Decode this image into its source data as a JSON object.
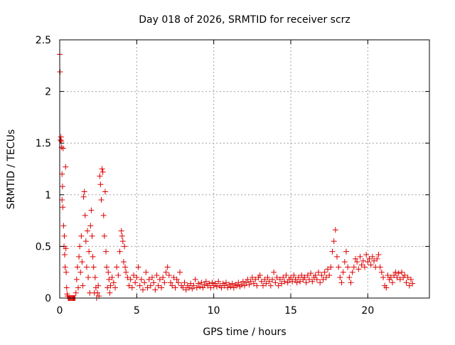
{
  "chart_data": {
    "type": "scatter",
    "title": "Day 018 of 2026, SRMTID for receiver scrz",
    "xlabel": "GPS time / hours",
    "ylabel": "SRMTID / TECUs",
    "xlim": [
      0,
      24
    ],
    "ylim": [
      0,
      2.5
    ],
    "xticks": [
      0,
      5,
      10,
      15,
      20
    ],
    "yticks": [
      0,
      0.5,
      1,
      1.5,
      2,
      2.5
    ],
    "xtick_labels": [
      "0",
      "5",
      "10",
      "15",
      "20"
    ],
    "ytick_labels": [
      "0",
      "0.5",
      "1",
      "1.5",
      "2",
      "2.5"
    ],
    "grid": true,
    "marker": "+",
    "color": "#dd0000",
    "series": [
      {
        "name": "SRMTID",
        "points": [
          [
            0.0,
            2.36
          ],
          [
            0.02,
            2.19
          ],
          [
            0.05,
            1.53
          ],
          [
            0.08,
            1.56
          ],
          [
            0.1,
            1.52
          ],
          [
            0.12,
            1.46
          ],
          [
            0.15,
            1.2
          ],
          [
            0.15,
            0.95
          ],
          [
            0.18,
            1.08
          ],
          [
            0.2,
            0.88
          ],
          [
            0.22,
            1.45
          ],
          [
            0.25,
            0.7
          ],
          [
            0.28,
            0.5
          ],
          [
            0.3,
            0.6
          ],
          [
            0.32,
            0.42
          ],
          [
            0.35,
            0.3
          ],
          [
            0.38,
            1.27
          ],
          [
            0.4,
            0.48
          ],
          [
            0.42,
            0.25
          ],
          [
            0.45,
            0.1
          ],
          [
            0.48,
            0.04
          ],
          [
            0.5,
            0.02
          ],
          [
            0.55,
            0.0
          ],
          [
            0.6,
            0.0
          ],
          [
            0.65,
            0.0
          ],
          [
            0.7,
            0.0
          ],
          [
            0.75,
            0.0
          ],
          [
            0.8,
            0.0
          ],
          [
            0.85,
            0.0
          ],
          [
            0.9,
            0.0
          ],
          [
            0.95,
            0.0
          ],
          [
            1.0,
            0.0
          ],
          [
            1.05,
            0.05
          ],
          [
            1.1,
            0.18
          ],
          [
            1.15,
            0.3
          ],
          [
            1.2,
            0.1
          ],
          [
            1.25,
            0.4
          ],
          [
            1.3,
            0.5
          ],
          [
            1.35,
            0.25
          ],
          [
            1.4,
            0.6
          ],
          [
            1.45,
            0.35
          ],
          [
            1.5,
            0.12
          ],
          [
            1.55,
            0.98
          ],
          [
            1.6,
            1.03
          ],
          [
            1.65,
            0.8
          ],
          [
            1.7,
            0.55
          ],
          [
            1.75,
            0.3
          ],
          [
            1.8,
            0.65
          ],
          [
            1.85,
            0.2
          ],
          [
            1.9,
            0.45
          ],
          [
            1.95,
            0.05
          ],
          [
            2.0,
            0.7
          ],
          [
            2.05,
            0.85
          ],
          [
            2.1,
            0.6
          ],
          [
            2.15,
            0.4
          ],
          [
            2.2,
            0.3
          ],
          [
            2.25,
            0.05
          ],
          [
            2.3,
            0.2
          ],
          [
            2.35,
            0.1
          ],
          [
            2.4,
            0.0
          ],
          [
            2.45,
            0.05
          ],
          [
            2.5,
            0.12
          ],
          [
            2.55,
            0.02
          ],
          [
            2.6,
            1.18
          ],
          [
            2.65,
            1.1
          ],
          [
            2.7,
            0.95
          ],
          [
            2.75,
            1.25
          ],
          [
            2.8,
            1.22
          ],
          [
            2.85,
            0.8
          ],
          [
            2.9,
            0.6
          ],
          [
            2.95,
            1.03
          ],
          [
            3.0,
            0.45
          ],
          [
            3.05,
            0.3
          ],
          [
            3.1,
            0.1
          ],
          [
            3.15,
            0.25
          ],
          [
            3.2,
            0.18
          ],
          [
            3.25,
            0.05
          ],
          [
            3.3,
            0.12
          ],
          [
            3.4,
            0.2
          ],
          [
            3.5,
            0.15
          ],
          [
            3.6,
            0.1
          ],
          [
            3.7,
            0.3
          ],
          [
            3.8,
            0.22
          ],
          [
            3.9,
            0.45
          ],
          [
            4.0,
            0.65
          ],
          [
            4.05,
            0.6
          ],
          [
            4.1,
            0.55
          ],
          [
            4.15,
            0.35
          ],
          [
            4.2,
            0.5
          ],
          [
            4.25,
            0.3
          ],
          [
            4.3,
            0.25
          ],
          [
            4.4,
            0.2
          ],
          [
            4.5,
            0.12
          ],
          [
            4.6,
            0.18
          ],
          [
            4.7,
            0.1
          ],
          [
            4.8,
            0.22
          ],
          [
            4.9,
            0.15
          ],
          [
            5.0,
            0.2
          ],
          [
            5.1,
            0.3
          ],
          [
            5.2,
            0.12
          ],
          [
            5.3,
            0.18
          ],
          [
            5.4,
            0.08
          ],
          [
            5.5,
            0.15
          ],
          [
            5.6,
            0.25
          ],
          [
            5.7,
            0.1
          ],
          [
            5.8,
            0.18
          ],
          [
            5.9,
            0.12
          ],
          [
            6.0,
            0.2
          ],
          [
            6.1,
            0.15
          ],
          [
            6.2,
            0.08
          ],
          [
            6.3,
            0.22
          ],
          [
            6.4,
            0.12
          ],
          [
            6.5,
            0.18
          ],
          [
            6.6,
            0.1
          ],
          [
            6.7,
            0.2
          ],
          [
            6.8,
            0.15
          ],
          [
            6.9,
            0.25
          ],
          [
            7.0,
            0.3
          ],
          [
            7.1,
            0.22
          ],
          [
            7.2,
            0.15
          ],
          [
            7.3,
            0.12
          ],
          [
            7.4,
            0.2
          ],
          [
            7.5,
            0.1
          ],
          [
            7.6,
            0.18
          ],
          [
            7.7,
            0.15
          ],
          [
            7.8,
            0.25
          ],
          [
            7.9,
            0.12
          ],
          [
            8.0,
            0.1
          ],
          [
            8.1,
            0.15
          ],
          [
            8.2,
            0.08
          ],
          [
            8.3,
            0.12
          ],
          [
            8.4,
            0.1
          ],
          [
            8.5,
            0.14
          ],
          [
            8.6,
            0.09
          ],
          [
            8.7,
            0.12
          ],
          [
            8.8,
            0.18
          ],
          [
            8.9,
            0.1
          ],
          [
            9.0,
            0.14
          ],
          [
            9.1,
            0.11
          ],
          [
            9.2,
            0.15
          ],
          [
            9.3,
            0.1
          ],
          [
            9.4,
            0.13
          ],
          [
            9.5,
            0.16
          ],
          [
            9.6,
            0.12
          ],
          [
            9.7,
            0.14
          ],
          [
            9.8,
            0.1
          ],
          [
            9.9,
            0.15
          ],
          [
            10.0,
            0.12
          ],
          [
            10.1,
            0.14
          ],
          [
            10.2,
            0.11
          ],
          [
            10.3,
            0.16
          ],
          [
            10.4,
            0.12
          ],
          [
            10.5,
            0.1
          ],
          [
            10.6,
            0.14
          ],
          [
            10.7,
            0.12
          ],
          [
            10.8,
            0.15
          ],
          [
            10.9,
            0.1
          ],
          [
            11.0,
            0.13
          ],
          [
            11.1,
            0.11
          ],
          [
            11.2,
            0.14
          ],
          [
            11.3,
            0.1
          ],
          [
            11.4,
            0.13
          ],
          [
            11.5,
            0.12
          ],
          [
            11.6,
            0.15
          ],
          [
            11.7,
            0.11
          ],
          [
            11.8,
            0.13
          ],
          [
            11.9,
            0.16
          ],
          [
            12.0,
            0.12
          ],
          [
            12.1,
            0.15
          ],
          [
            12.2,
            0.18
          ],
          [
            12.3,
            0.13
          ],
          [
            12.4,
            0.16
          ],
          [
            12.5,
            0.2
          ],
          [
            12.6,
            0.14
          ],
          [
            12.7,
            0.18
          ],
          [
            12.8,
            0.12
          ],
          [
            12.9,
            0.2
          ],
          [
            13.0,
            0.22
          ],
          [
            13.1,
            0.16
          ],
          [
            13.2,
            0.12
          ],
          [
            13.3,
            0.18
          ],
          [
            13.4,
            0.14
          ],
          [
            13.5,
            0.2
          ],
          [
            13.6,
            0.16
          ],
          [
            13.7,
            0.12
          ],
          [
            13.8,
            0.18
          ],
          [
            13.9,
            0.25
          ],
          [
            14.0,
            0.15
          ],
          [
            14.1,
            0.2
          ],
          [
            14.2,
            0.12
          ],
          [
            14.3,
            0.18
          ],
          [
            14.4,
            0.14
          ],
          [
            14.5,
            0.2
          ],
          [
            14.6,
            0.16
          ],
          [
            14.7,
            0.22
          ],
          [
            14.8,
            0.15
          ],
          [
            14.9,
            0.18
          ],
          [
            15.0,
            0.2
          ],
          [
            15.1,
            0.16
          ],
          [
            15.2,
            0.22
          ],
          [
            15.3,
            0.18
          ],
          [
            15.4,
            0.15
          ],
          [
            15.5,
            0.2
          ],
          [
            15.6,
            0.16
          ],
          [
            15.7,
            0.22
          ],
          [
            15.8,
            0.18
          ],
          [
            15.9,
            0.2
          ],
          [
            16.0,
            0.15
          ],
          [
            16.1,
            0.22
          ],
          [
            16.2,
            0.18
          ],
          [
            16.3,
            0.24
          ],
          [
            16.4,
            0.16
          ],
          [
            16.5,
            0.2
          ],
          [
            16.6,
            0.22
          ],
          [
            16.7,
            0.18
          ],
          [
            16.8,
            0.25
          ],
          [
            16.9,
            0.15
          ],
          [
            17.0,
            0.22
          ],
          [
            17.1,
            0.18
          ],
          [
            17.2,
            0.25
          ],
          [
            17.3,
            0.2
          ],
          [
            17.4,
            0.28
          ],
          [
            17.5,
            0.22
          ],
          [
            17.6,
            0.3
          ],
          [
            17.7,
            0.45
          ],
          [
            17.8,
            0.55
          ],
          [
            17.9,
            0.66
          ],
          [
            18.0,
            0.4
          ],
          [
            18.1,
            0.3
          ],
          [
            18.2,
            0.2
          ],
          [
            18.3,
            0.15
          ],
          [
            18.4,
            0.25
          ],
          [
            18.5,
            0.35
          ],
          [
            18.6,
            0.45
          ],
          [
            18.7,
            0.3
          ],
          [
            18.8,
            0.2
          ],
          [
            18.9,
            0.15
          ],
          [
            19.0,
            0.25
          ],
          [
            19.1,
            0.3
          ],
          [
            19.2,
            0.38
          ],
          [
            19.3,
            0.35
          ],
          [
            19.4,
            0.28
          ],
          [
            19.5,
            0.4
          ],
          [
            19.6,
            0.32
          ],
          [
            19.7,
            0.36
          ],
          [
            19.8,
            0.3
          ],
          [
            19.9,
            0.42
          ],
          [
            20.0,
            0.35
          ],
          [
            20.1,
            0.38
          ],
          [
            20.2,
            0.32
          ],
          [
            20.3,
            0.4
          ],
          [
            20.4,
            0.36
          ],
          [
            20.5,
            0.3
          ],
          [
            20.6,
            0.38
          ],
          [
            20.7,
            0.42
          ],
          [
            20.8,
            0.3
          ],
          [
            20.9,
            0.25
          ],
          [
            21.0,
            0.2
          ],
          [
            21.1,
            0.12
          ],
          [
            21.2,
            0.1
          ],
          [
            21.3,
            0.22
          ],
          [
            21.4,
            0.18
          ],
          [
            21.5,
            0.2
          ],
          [
            21.6,
            0.15
          ],
          [
            21.7,
            0.22
          ],
          [
            21.8,
            0.25
          ],
          [
            21.9,
            0.2
          ],
          [
            22.0,
            0.24
          ],
          [
            22.1,
            0.18
          ],
          [
            22.2,
            0.25
          ],
          [
            22.3,
            0.2
          ],
          [
            22.4,
            0.22
          ],
          [
            22.5,
            0.15
          ],
          [
            22.6,
            0.2
          ],
          [
            22.7,
            0.12
          ],
          [
            22.8,
            0.18
          ],
          [
            22.9,
            0.14
          ]
        ]
      }
    ]
  }
}
